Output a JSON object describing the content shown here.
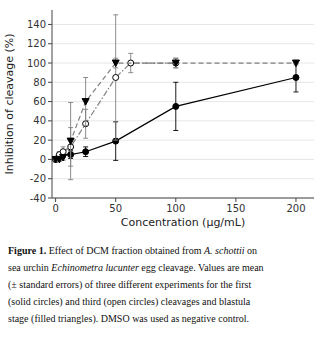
{
  "chart_data": {
    "type": "line",
    "xlabel": "Concentration (µg/mL)",
    "ylabel": "Inhibition of cleavage (%)",
    "xlim": [
      -3,
      215
    ],
    "ylim": [
      -40,
      155
    ],
    "xticks": [
      0,
      50,
      100,
      150,
      200
    ],
    "yticks": [
      -40,
      -20,
      0,
      20,
      40,
      60,
      80,
      100,
      120,
      140
    ],
    "series": [
      {
        "x": [
          0,
          3.125,
          6.25,
          12.5,
          25,
          50,
          100,
          200
        ],
        "values": [
          0,
          4,
          5,
          5,
          8,
          19,
          55,
          85
        ],
        "errors": [
          1,
          2,
          3,
          4,
          5,
          20,
          25,
          15
        ],
        "color": "black",
        "marker": "circle",
        "line_style": "solid"
      },
      {
        "x": [
          0,
          3.125,
          6.25,
          12.5,
          25,
          50,
          62.5,
          100
        ],
        "values": [
          0,
          5,
          8,
          13,
          37,
          85,
          100,
          100
        ],
        "errors": [
          1,
          3,
          5,
          20,
          15,
          65,
          10,
          5
        ],
        "color": "gray",
        "marker": "open-circle",
        "line_style": "dashdot"
      },
      {
        "x": [
          0,
          3.125,
          6.25,
          12.5,
          25,
          50,
          100,
          200
        ],
        "values": [
          0,
          0,
          2,
          19,
          60,
          100,
          100,
          100
        ],
        "errors": [
          1,
          2,
          3,
          40,
          25,
          5,
          5,
          2
        ],
        "color": "gray",
        "marker": "triangle-down",
        "line_style": "dashed"
      }
    ],
    "caption": [
      [
        {
          "text": "Figure 1.",
          "style": "bold"
        },
        {
          "text": " Effect of DCM fraction obtained from ",
          "style": "normal"
        },
        {
          "text": "A. schottii",
          "style": "italic"
        },
        {
          "text": " on",
          "style": "normal"
        }
      ],
      [
        {
          "text": "sea urchin ",
          "style": "normal"
        },
        {
          "text": "Echinometra lucunter",
          "style": "italic"
        },
        {
          "text": " egg cleavage. Values are mean",
          "style": "normal"
        }
      ],
      [
        {
          "text": "(± standard errors) of three different experiments for the first",
          "style": "normal"
        }
      ],
      [
        {
          "text": "(solid circles) and third (open circles) cleavages and blastula",
          "style": "normal"
        }
      ],
      [
        {
          "text": "stage (filled triangles).  DMSO was used as negative control.",
          "style": "normal"
        }
      ]
    ]
  }
}
